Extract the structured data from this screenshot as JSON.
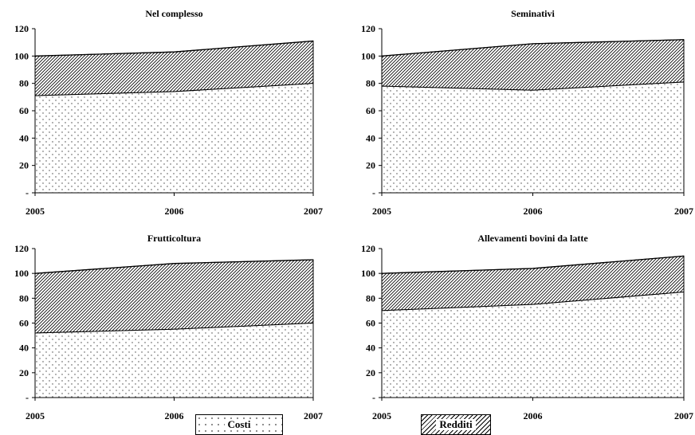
{
  "chart_data": [
    {
      "type": "area",
      "title": "Nel complesso",
      "x": [
        "2005",
        "2006",
        "2007"
      ],
      "ylim": [
        0,
        120
      ],
      "yticks": [
        "-",
        "20",
        "40",
        "60",
        "80",
        "100",
        "120"
      ],
      "series": [
        {
          "name": "Costi",
          "values": [
            71,
            74,
            80
          ]
        },
        {
          "name": "Redditi",
          "values": [
            29,
            29,
            31
          ]
        }
      ],
      "totals": [
        100,
        103,
        111
      ]
    },
    {
      "type": "area",
      "title": "Seminativi",
      "x": [
        "2005",
        "2006",
        "2007"
      ],
      "ylim": [
        0,
        120
      ],
      "yticks": [
        "-",
        "20",
        "40",
        "60",
        "80",
        "100",
        "120"
      ],
      "series": [
        {
          "name": "Costi",
          "values": [
            78,
            75,
            81
          ]
        },
        {
          "name": "Redditi",
          "values": [
            22,
            34,
            31
          ]
        }
      ],
      "totals": [
        100,
        109,
        112
      ]
    },
    {
      "type": "area",
      "title": "Frutticoltura",
      "x": [
        "2005",
        "2006",
        "2007"
      ],
      "ylim": [
        0,
        120
      ],
      "yticks": [
        "-",
        "20",
        "40",
        "60",
        "80",
        "100",
        "120"
      ],
      "series": [
        {
          "name": "Costi",
          "values": [
            52,
            55,
            60
          ]
        },
        {
          "name": "Redditi",
          "values": [
            48,
            53,
            51
          ]
        }
      ],
      "totals": [
        100,
        108,
        111
      ]
    },
    {
      "type": "area",
      "title": "Allevamenti bovini da latte",
      "x": [
        "2005",
        "2006",
        "2007"
      ],
      "ylim": [
        0,
        120
      ],
      "yticks": [
        "-",
        "20",
        "40",
        "60",
        "80",
        "100",
        "120"
      ],
      "series": [
        {
          "name": "Costi",
          "values": [
            70,
            75,
            85
          ]
        },
        {
          "name": "Redditi",
          "values": [
            30,
            29,
            29
          ]
        }
      ],
      "totals": [
        100,
        104,
        114
      ]
    }
  ],
  "legend": {
    "position": "bottom-center",
    "items": [
      {
        "label": "Costi",
        "pattern": "dots"
      },
      {
        "label": "Redditi",
        "pattern": "hatch"
      }
    ]
  },
  "colors": {
    "ink": "#000000",
    "dots": "#444444",
    "background": "#ffffff"
  }
}
